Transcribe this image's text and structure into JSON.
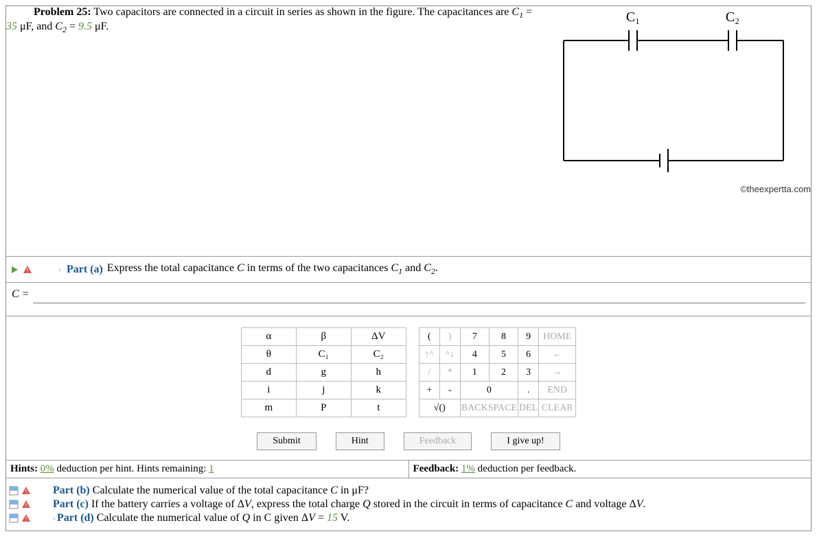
{
  "problem": {
    "number_label": "Problem 25:",
    "text_before": "Two capacitors are connected in a circuit in series as shown in the figure. The capacitances are ",
    "c1_label": "C",
    "c1_sub": "1",
    "eq1": " = ",
    "c1_val": "35",
    "unit1": " μF, and ",
    "c2_label": "C",
    "c2_sub": "2",
    "eq2": " = ",
    "c2_val": "9.5",
    "unit2": " μF."
  },
  "circuit": {
    "c1_label": "C₁",
    "c2_label": "C₂",
    "copyright": "©theexpertta.com",
    "stroke": "#000000",
    "stroke_width": 2
  },
  "part_a": {
    "marker": "›",
    "label": "Part (a)",
    "text": "Express the total capacitance C in terms of the two capacitances C₁ and C₂.",
    "text_plain_prefix": "Express the total capacitance ",
    "text_plain_mid": " in terms of the two capacitances ",
    "and": " and ",
    "period": "."
  },
  "equation": {
    "label": "C = ",
    "value": ""
  },
  "symbol_keys": [
    [
      "α",
      "β",
      "ΔV"
    ],
    [
      "θ",
      "C₁",
      "C₂"
    ],
    [
      "d",
      "g",
      "h"
    ],
    [
      "i",
      "j",
      "k"
    ],
    [
      "m",
      "P",
      "t"
    ]
  ],
  "num_keys": {
    "r1": [
      "(",
      ")",
      "7",
      "8",
      "9",
      "HOME"
    ],
    "r2": [
      "↑^",
      "^↓",
      "4",
      "5",
      "6",
      "←"
    ],
    "r3": [
      "/",
      "*",
      "1",
      "2",
      "3",
      "→"
    ],
    "r4": [
      "+",
      "-",
      "0",
      ".",
      "END"
    ],
    "r5": [
      "√()",
      "BACKSPACE",
      "DEL",
      "CLEAR"
    ]
  },
  "actions": {
    "submit": "Submit",
    "hint": "Hint",
    "feedback": "Feedback",
    "giveup": "I give up!"
  },
  "hints_bar": {
    "left_pre": "Hints: ",
    "left_pct": "0%",
    "left_mid": " deduction per hint. Hints remaining: ",
    "left_count": "1",
    "right_pre": "Feedback: ",
    "right_pct": "1%",
    "right_post": " deduction per feedback."
  },
  "parts": {
    "b_label": "Part (b)",
    "b_text": "Calculate the numerical value of the total capacitance C in μF?",
    "c_label": "Part (c)",
    "c_text": "If the battery carries a voltage of ΔV, express the total charge Q stored in the circuit in terms of capacitance C and voltage ΔV.",
    "d_label": "Part (d)",
    "d_text_pre": "Calculate the numerical value of Q in C given ΔV = ",
    "d_val": "15",
    "d_text_post": " V.",
    "chev": "›"
  }
}
